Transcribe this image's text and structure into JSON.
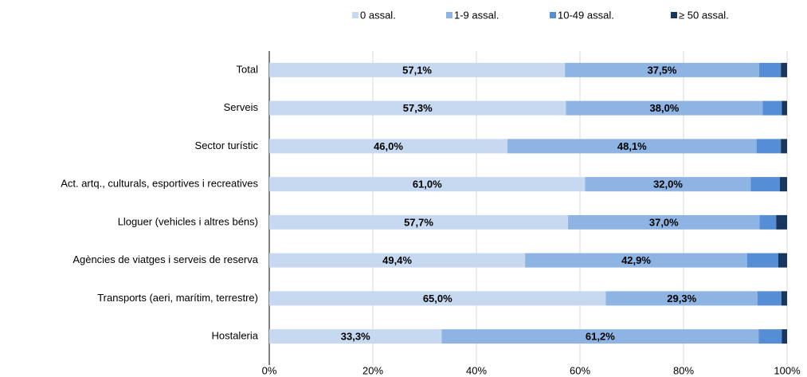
{
  "chart_data": {
    "type": "stacked-bar-horizontal",
    "categories": [
      "Total",
      "Serveis",
      "Sector turístic",
      "Act. artq., culturals, esportives i recreatives",
      "Lloguer (vehicles i altres béns)",
      "Agències de viatges i serveis de reserva",
      "Transports (aeri, marítim, terrestre)",
      "Hostaleria"
    ],
    "series": [
      {
        "name": "0 assal.",
        "color": "#c6d9f1",
        "values": [
          57.1,
          57.3,
          46.0,
          61.0,
          57.7,
          49.4,
          65.0,
          33.3
        ],
        "value_labels": [
          "57,1%",
          "57,3%",
          "46,0%",
          "61,0%",
          "57,7%",
          "49,4%",
          "65,0%",
          "33,3%"
        ]
      },
      {
        "name": "1-9 assal.",
        "color": "#8eb4e3",
        "values": [
          37.5,
          38.0,
          48.1,
          32.0,
          37.0,
          42.9,
          29.3,
          61.2
        ],
        "value_labels": [
          "37,5%",
          "38,0%",
          "48,1%",
          "32,0%",
          "37,0%",
          "42,9%",
          "29,3%",
          "61,2%"
        ]
      },
      {
        "name": "10-49 assal.",
        "color": "#558ed5",
        "values": [
          4.2,
          3.7,
          4.7,
          5.6,
          3.2,
          6.0,
          4.6,
          4.5
        ]
      },
      {
        "name": "≥ 50 assal.",
        "color": "#17375e",
        "values": [
          1.2,
          1.0,
          1.2,
          1.4,
          2.1,
          1.7,
          1.1,
          1.0
        ]
      }
    ],
    "xlim": [
      0,
      100
    ],
    "xticks": [
      {
        "value": 0,
        "label": "0%"
      },
      {
        "value": 20,
        "label": "20%"
      },
      {
        "value": 40,
        "label": "40%"
      },
      {
        "value": 60,
        "label": "60%"
      },
      {
        "value": 80,
        "label": "80%"
      },
      {
        "value": 100,
        "label": "100%"
      }
    ],
    "grid": true,
    "legend": "top"
  }
}
